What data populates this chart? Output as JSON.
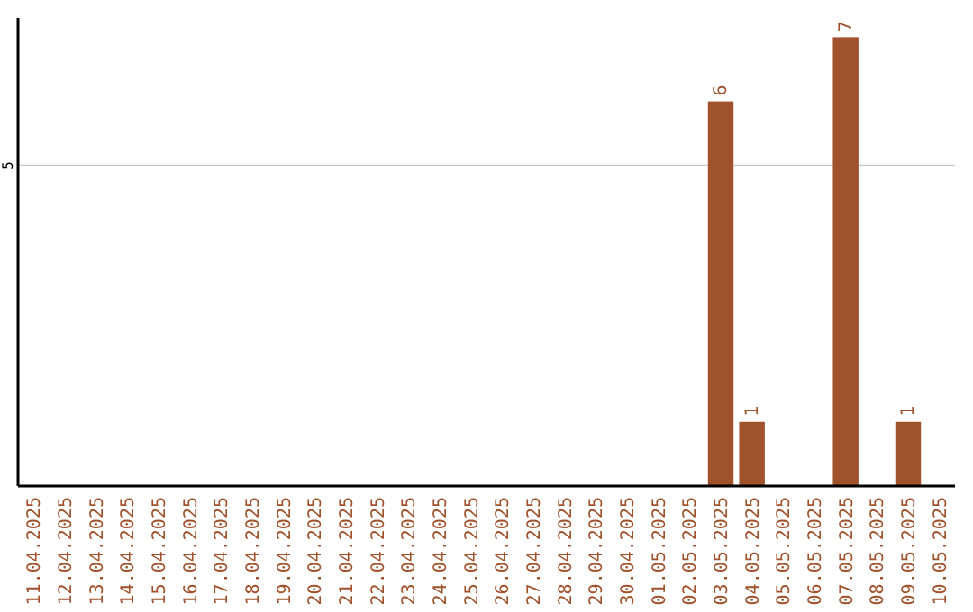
{
  "chart_data": {
    "type": "bar",
    "ylim": [
      0,
      7.3
    ],
    "categories": [
      "11.04.2025",
      "12.04.2025",
      "13.04.2025",
      "14.04.2025",
      "15.04.2025",
      "16.04.2025",
      "17.04.2025",
      "18.04.2025",
      "19.04.2025",
      "20.04.2025",
      "21.04.2025",
      "22.04.2025",
      "23.04.2025",
      "24.04.2025",
      "25.04.2025",
      "26.04.2025",
      "27.04.2025",
      "28.04.2025",
      "29.04.2025",
      "30.04.2025",
      "01.05.2025",
      "02.05.2025",
      "03.05.2025",
      "04.05.2025",
      "05.05.2025",
      "06.05.2025",
      "07.05.2025",
      "08.05.2025",
      "09.05.2025",
      "10.05.2025"
    ],
    "values": [
      null,
      null,
      null,
      null,
      null,
      null,
      null,
      null,
      null,
      null,
      null,
      null,
      null,
      null,
      null,
      null,
      null,
      null,
      null,
      null,
      null,
      null,
      6,
      1,
      null,
      null,
      7,
      null,
      1,
      null
    ],
    "value_labels": [
      null,
      null,
      null,
      null,
      null,
      null,
      null,
      null,
      null,
      null,
      null,
      null,
      null,
      null,
      null,
      null,
      null,
      null,
      null,
      null,
      null,
      null,
      "6",
      "1",
      null,
      null,
      "7",
      null,
      "1",
      null
    ],
    "color": "#a0522d",
    "ref_lines": [
      {
        "axis": "y",
        "value": 5,
        "label": "5",
        "color": "#c8c8c8"
      }
    ]
  }
}
